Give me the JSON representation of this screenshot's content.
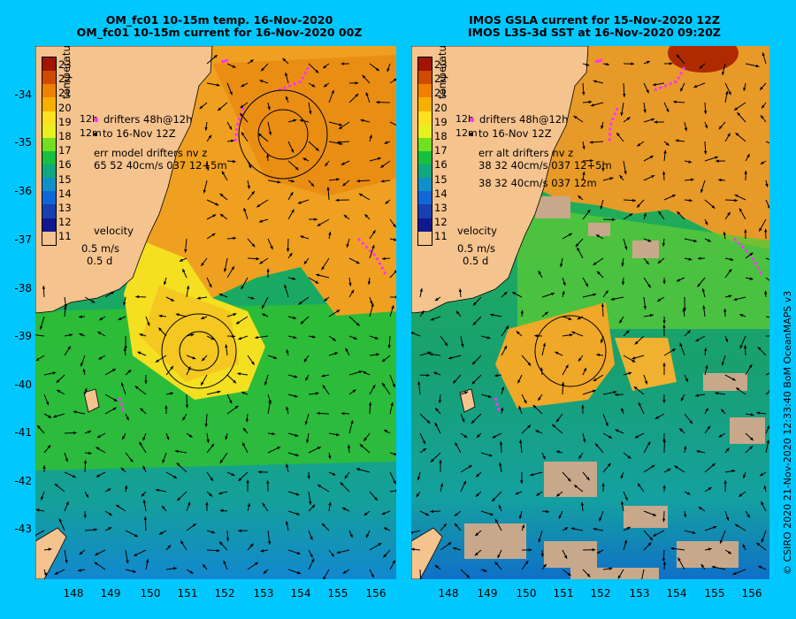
{
  "left": {
    "title1": "OM_fc01 10-15m temp. 16-Nov-2020",
    "title2": "OM_fc01 10-15m current for 16-Nov-2020 00Z",
    "legend_drifters": "drifters 48h@12h",
    "legend_to": "to 16-Nov 12Z",
    "legend_err1": "err model drifters nv z",
    "legend_err2": "65 52 40cm/s 037 12+5m",
    "legend_err3": "",
    "cb_side1": "12h",
    "cb_side2": "12m"
  },
  "right": {
    "title1": "IMOS GSLA current for 15-Nov-2020 12Z",
    "title2": "IMOS L3S-3d SST at 16-Nov-2020 09:20Z",
    "legend_drifters": "drifters 48h@12h",
    "legend_to": "to 16-Nov 12Z",
    "legend_err1": "err alt drifters nv z",
    "legend_err2": "38 32 40cm/s 037 12+5m",
    "legend_err3": "38 32 40cm/s 037 12m",
    "cb_side1": "12h",
    "cb_side2": "12m"
  },
  "colorbar": {
    "title": "temperature",
    "labels": [
      "23",
      "22",
      "21",
      "20",
      "19",
      "18",
      "17",
      "16",
      "15",
      "14",
      "13",
      "12",
      "11"
    ],
    "colors": [
      "#a01400",
      "#d04a00",
      "#f08000",
      "#f8b000",
      "#ffe020",
      "#e8f020",
      "#70e020",
      "#18c040",
      "#10a880",
      "#1090c8",
      "#1068d8",
      "#1840b0",
      "#101890"
    ]
  },
  "velocity": {
    "label": "velocity",
    "speed": "0.5 m/s",
    "time": "0.5 d"
  },
  "lat_ticks": [
    "-34",
    "-35",
    "-36",
    "-37",
    "-38",
    "-39",
    "-40",
    "-41",
    "-42",
    "-43"
  ],
  "lon_ticks": [
    "148",
    "149",
    "150",
    "151",
    "152",
    "153",
    "154",
    "155",
    "156"
  ],
  "side_text": "© CSIRO 2020   21-Nov-2020 12:33:40 BoM OceanMAPS v3",
  "colors": {
    "background": "#00c8ff",
    "land": "#f5c38e",
    "cloud": "#c8a88a",
    "drifter": "#ff33ff"
  }
}
